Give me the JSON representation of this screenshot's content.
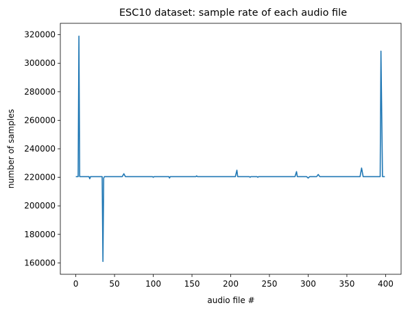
{
  "chart_data": {
    "type": "line",
    "title": "ESC10 dataset: sample rate of each audio file",
    "xlabel": "audio file #",
    "ylabel": "number of samples",
    "xlim": [
      -20,
      420
    ],
    "ylim": [
      152000,
      328000
    ],
    "xticks": [
      0,
      50,
      100,
      150,
      200,
      250,
      300,
      350,
      400
    ],
    "yticks": [
      160000,
      180000,
      200000,
      220000,
      240000,
      260000,
      280000,
      300000,
      320000
    ],
    "grid": false,
    "series": [
      {
        "color": "#1f77b4",
        "points": [
          [
            0,
            220500
          ],
          [
            3,
            220500
          ],
          [
            4,
            319000
          ],
          [
            5,
            220500
          ],
          [
            17,
            220500
          ],
          [
            18,
            219000
          ],
          [
            19,
            220500
          ],
          [
            34,
            220500
          ],
          [
            35,
            161000
          ],
          [
            36,
            219500
          ],
          [
            37,
            220500
          ],
          [
            60,
            220500
          ],
          [
            62,
            222500
          ],
          [
            64,
            220500
          ],
          [
            99,
            220500
          ],
          [
            100,
            220000
          ],
          [
            101,
            220500
          ],
          [
            120,
            220500
          ],
          [
            121,
            219500
          ],
          [
            122,
            220500
          ],
          [
            155,
            220500
          ],
          [
            156,
            221000
          ],
          [
            157,
            220500
          ],
          [
            206,
            220500
          ],
          [
            208,
            225000
          ],
          [
            209,
            220500
          ],
          [
            224,
            220500
          ],
          [
            225,
            220000
          ],
          [
            226,
            220500
          ],
          [
            234,
            220500
          ],
          [
            235,
            220000
          ],
          [
            236,
            220500
          ],
          [
            283,
            220500
          ],
          [
            285,
            224000
          ],
          [
            286,
            220500
          ],
          [
            298,
            220500
          ],
          [
            300,
            219500
          ],
          [
            302,
            220500
          ],
          [
            311,
            220500
          ],
          [
            313,
            222000
          ],
          [
            315,
            220500
          ],
          [
            367,
            220500
          ],
          [
            369,
            226500
          ],
          [
            371,
            220500
          ],
          [
            393,
            220500
          ],
          [
            394,
            308500
          ],
          [
            396,
            220500
          ],
          [
            399,
            220500
          ]
        ]
      }
    ]
  }
}
